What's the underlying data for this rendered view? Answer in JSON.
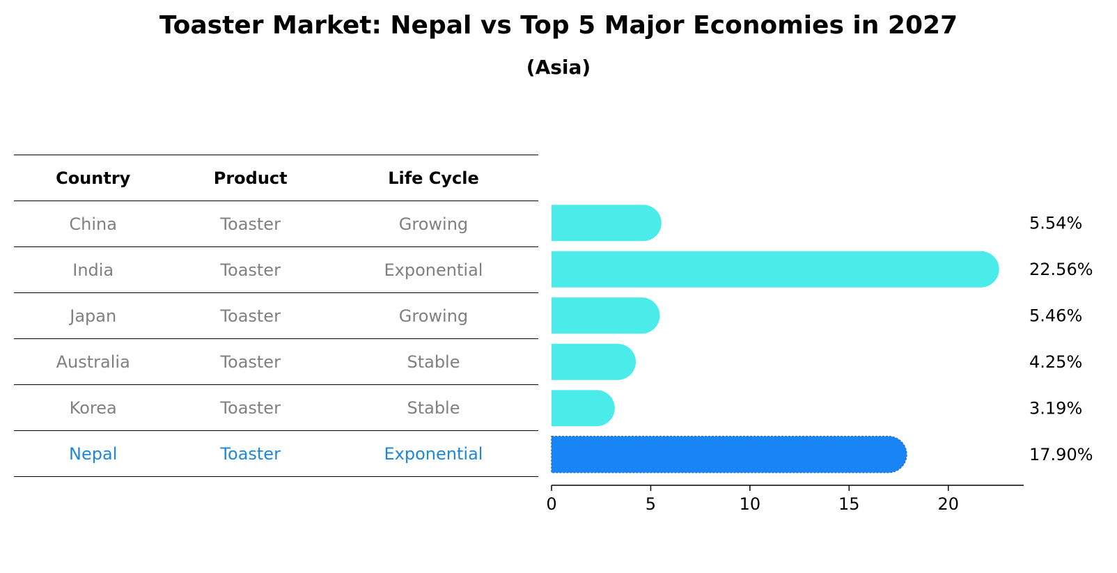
{
  "title": "Toaster Market: Nepal vs Top 5 Major Economies in 2027",
  "subtitle": "(Asia)",
  "table": {
    "headers": [
      "Country",
      "Product",
      "Life Cycle"
    ],
    "rows": [
      {
        "country": "China",
        "product": "Toaster",
        "life_cycle": "Growing",
        "highlight": false
      },
      {
        "country": "India",
        "product": "Toaster",
        "life_cycle": "Exponential",
        "highlight": false
      },
      {
        "country": "Japan",
        "product": "Toaster",
        "life_cycle": "Growing",
        "highlight": false
      },
      {
        "country": "Australia",
        "product": "Toaster",
        "life_cycle": "Stable",
        "highlight": false
      },
      {
        "country": "Korea",
        "product": "Toaster",
        "life_cycle": "Stable",
        "highlight": false
      },
      {
        "country": "Nepal",
        "product": "Toaster",
        "life_cycle": "Exponential",
        "highlight": true
      }
    ]
  },
  "chart_data": {
    "type": "bar",
    "orientation": "horizontal",
    "categories": [
      "China",
      "India",
      "Japan",
      "Australia",
      "Korea",
      "Nepal"
    ],
    "values": [
      5.54,
      22.56,
      5.46,
      4.25,
      3.19,
      17.9
    ],
    "value_labels": [
      "5.54%",
      "22.56%",
      "5.46%",
      "4.25%",
      "3.19%",
      "17.90%"
    ],
    "xlim": [
      0,
      23.8
    ],
    "xticks": [
      0,
      5,
      10,
      15,
      20
    ],
    "highlight_category": "Nepal",
    "colors": {
      "default": "#4bebe9",
      "highlight": "#1985f5",
      "text": "#000000",
      "muted": "#808080",
      "highlight_text": "#1f86d8"
    }
  }
}
